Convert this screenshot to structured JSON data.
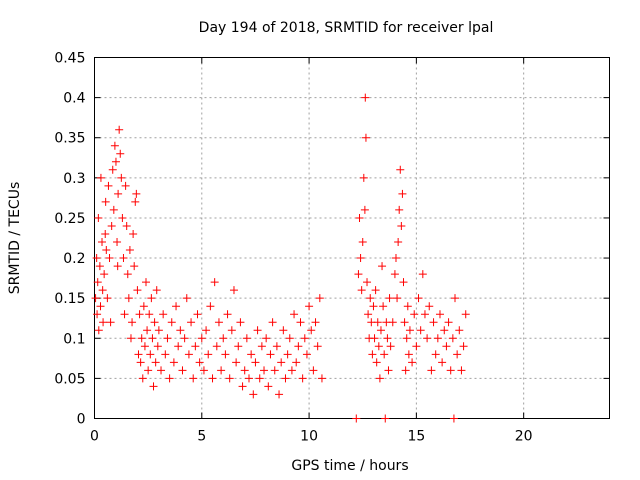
{
  "chart_data": {
    "type": "scatter",
    "title": "Day 194 of 2018, SRMTID for receiver lpal",
    "xlabel": "GPS time / hours",
    "ylabel": "SRMTID / TECUs",
    "xlim": [
      0,
      24
    ],
    "ylim": [
      0,
      0.45
    ],
    "x_ticks": [
      0,
      5,
      10,
      15,
      20
    ],
    "x_tick_labels": [
      "0",
      "5",
      "10",
      "15",
      "20"
    ],
    "y_ticks": [
      0,
      0.05,
      0.1,
      0.15,
      0.2,
      0.25,
      0.3,
      0.35,
      0.4,
      0.45
    ],
    "y_tick_labels": [
      "0",
      "0.05",
      "0.1",
      "0.15",
      "0.2",
      "0.25",
      "0.3",
      "0.35",
      "0.4",
      "0.45"
    ],
    "grid": true,
    "marker": "plus",
    "color": "#ff0000",
    "series": [
      {
        "name": "SRMTID",
        "points": [
          [
            0.05,
            0.15
          ],
          [
            0.1,
            0.2
          ],
          [
            0.12,
            0.13
          ],
          [
            0.15,
            0.17
          ],
          [
            0.18,
            0.25
          ],
          [
            0.2,
            0.11
          ],
          [
            0.25,
            0.19
          ],
          [
            0.28,
            0.14
          ],
          [
            0.3,
            0.3
          ],
          [
            0.35,
            0.22
          ],
          [
            0.38,
            0.16
          ],
          [
            0.4,
            0.12
          ],
          [
            0.45,
            0.18
          ],
          [
            0.5,
            0.23
          ],
          [
            0.52,
            0.27
          ],
          [
            0.55,
            0.21
          ],
          [
            0.6,
            0.15
          ],
          [
            0.65,
            0.29
          ],
          [
            0.7,
            0.2
          ],
          [
            0.75,
            0.12
          ],
          [
            0.8,
            0.24
          ],
          [
            0.85,
            0.31
          ],
          [
            0.9,
            0.26
          ],
          [
            0.95,
            0.34
          ],
          [
            1.0,
            0.32
          ],
          [
            1.05,
            0.22
          ],
          [
            1.08,
            0.19
          ],
          [
            1.1,
            0.28
          ],
          [
            1.15,
            0.36
          ],
          [
            1.2,
            0.33
          ],
          [
            1.25,
            0.3
          ],
          [
            1.3,
            0.25
          ],
          [
            1.35,
            0.2
          ],
          [
            1.4,
            0.13
          ],
          [
            1.45,
            0.29
          ],
          [
            1.5,
            0.24
          ],
          [
            1.55,
            0.18
          ],
          [
            1.6,
            0.15
          ],
          [
            1.65,
            0.21
          ],
          [
            1.7,
            0.1
          ],
          [
            1.75,
            0.12
          ],
          [
            1.8,
            0.23
          ],
          [
            1.85,
            0.19
          ],
          [
            1.9,
            0.27
          ],
          [
            1.95,
            0.28
          ],
          [
            2.0,
            0.16
          ],
          [
            2.05,
            0.08
          ],
          [
            2.1,
            0.13
          ],
          [
            2.15,
            0.07
          ],
          [
            2.2,
            0.1
          ],
          [
            2.25,
            0.05
          ],
          [
            2.3,
            0.14
          ],
          [
            2.35,
            0.09
          ],
          [
            2.4,
            0.17
          ],
          [
            2.45,
            0.11
          ],
          [
            2.5,
            0.06
          ],
          [
            2.55,
            0.13
          ],
          [
            2.6,
            0.08
          ],
          [
            2.65,
            0.15
          ],
          [
            2.7,
            0.1
          ],
          [
            2.75,
            0.04
          ],
          [
            2.8,
            0.12
          ],
          [
            2.85,
            0.07
          ],
          [
            2.9,
            0.16
          ],
          [
            2.95,
            0.09
          ],
          [
            3.0,
            0.11
          ],
          [
            3.1,
            0.06
          ],
          [
            3.2,
            0.13
          ],
          [
            3.3,
            0.08
          ],
          [
            3.4,
            0.1
          ],
          [
            3.5,
            0.05
          ],
          [
            3.6,
            0.12
          ],
          [
            3.7,
            0.07
          ],
          [
            3.8,
            0.14
          ],
          [
            3.9,
            0.09
          ],
          [
            4.0,
            0.11
          ],
          [
            4.1,
            0.06
          ],
          [
            4.2,
            0.1
          ],
          [
            4.3,
            0.15
          ],
          [
            4.4,
            0.08
          ],
          [
            4.5,
            0.12
          ],
          [
            4.6,
            0.05
          ],
          [
            4.7,
            0.09
          ],
          [
            4.8,
            0.13
          ],
          [
            4.9,
            0.07
          ],
          [
            5.0,
            0.1
          ],
          [
            5.1,
            0.06
          ],
          [
            5.2,
            0.11
          ],
          [
            5.3,
            0.08
          ],
          [
            5.4,
            0.14
          ],
          [
            5.5,
            0.05
          ],
          [
            5.6,
            0.17
          ],
          [
            5.7,
            0.09
          ],
          [
            5.8,
            0.12
          ],
          [
            5.9,
            0.06
          ],
          [
            6.0,
            0.1
          ],
          [
            6.1,
            0.08
          ],
          [
            6.2,
            0.13
          ],
          [
            6.3,
            0.05
          ],
          [
            6.4,
            0.11
          ],
          [
            6.5,
            0.16
          ],
          [
            6.6,
            0.07
          ],
          [
            6.7,
            0.09
          ],
          [
            6.8,
            0.12
          ],
          [
            6.9,
            0.04
          ],
          [
            7.0,
            0.06
          ],
          [
            7.1,
            0.1
          ],
          [
            7.2,
            0.05
          ],
          [
            7.3,
            0.08
          ],
          [
            7.4,
            0.03
          ],
          [
            7.5,
            0.07
          ],
          [
            7.6,
            0.11
          ],
          [
            7.7,
            0.05
          ],
          [
            7.8,
            0.09
          ],
          [
            7.9,
            0.06
          ],
          [
            8.0,
            0.1
          ],
          [
            8.1,
            0.04
          ],
          [
            8.2,
            0.08
          ],
          [
            8.3,
            0.12
          ],
          [
            8.4,
            0.06
          ],
          [
            8.5,
            0.09
          ],
          [
            8.6,
            0.03
          ],
          [
            8.7,
            0.07
          ],
          [
            8.8,
            0.11
          ],
          [
            8.9,
            0.05
          ],
          [
            9.0,
            0.08
          ],
          [
            9.1,
            0.1
          ],
          [
            9.2,
            0.06
          ],
          [
            9.3,
            0.13
          ],
          [
            9.4,
            0.07
          ],
          [
            9.5,
            0.09
          ],
          [
            9.6,
            0.12
          ],
          [
            9.7,
            0.05
          ],
          [
            9.8,
            0.1
          ],
          [
            9.9,
            0.08
          ],
          [
            10.0,
            0.14
          ],
          [
            10.1,
            0.11
          ],
          [
            10.2,
            0.06
          ],
          [
            10.3,
            0.12
          ],
          [
            10.4,
            0.09
          ],
          [
            10.5,
            0.15
          ],
          [
            10.6,
            0.05
          ],
          [
            12.2,
            0.0
          ],
          [
            12.3,
            0.18
          ],
          [
            12.35,
            0.25
          ],
          [
            12.4,
            0.2
          ],
          [
            12.45,
            0.16
          ],
          [
            12.5,
            0.22
          ],
          [
            12.55,
            0.3
          ],
          [
            12.6,
            0.26
          ],
          [
            12.62,
            0.4
          ],
          [
            12.65,
            0.35
          ],
          [
            12.7,
            0.17
          ],
          [
            12.75,
            0.13
          ],
          [
            12.8,
            0.1
          ],
          [
            12.85,
            0.15
          ],
          [
            12.9,
            0.12
          ],
          [
            12.95,
            0.08
          ],
          [
            13.0,
            0.14
          ],
          [
            13.05,
            0.1
          ],
          [
            13.1,
            0.16
          ],
          [
            13.15,
            0.07
          ],
          [
            13.2,
            0.12
          ],
          [
            13.25,
            0.09
          ],
          [
            13.3,
            0.05
          ],
          [
            13.35,
            0.11
          ],
          [
            13.4,
            0.19
          ],
          [
            13.45,
            0.14
          ],
          [
            13.5,
            0.08
          ],
          [
            13.55,
            0.0
          ],
          [
            13.6,
            0.12
          ],
          [
            13.65,
            0.1
          ],
          [
            13.7,
            0.06
          ],
          [
            13.75,
            0.15
          ],
          [
            13.8,
            0.09
          ],
          [
            13.9,
            0.12
          ],
          [
            14.0,
            0.18
          ],
          [
            14.05,
            0.2
          ],
          [
            14.1,
            0.15
          ],
          [
            14.15,
            0.22
          ],
          [
            14.2,
            0.26
          ],
          [
            14.25,
            0.31
          ],
          [
            14.3,
            0.24
          ],
          [
            14.35,
            0.28
          ],
          [
            14.4,
            0.17
          ],
          [
            14.45,
            0.12
          ],
          [
            14.5,
            0.06
          ],
          [
            14.55,
            0.1
          ],
          [
            14.6,
            0.14
          ],
          [
            14.65,
            0.08
          ],
          [
            14.7,
            0.11
          ],
          [
            14.8,
            0.07
          ],
          [
            14.9,
            0.13
          ],
          [
            15.0,
            0.09
          ],
          [
            15.1,
            0.15
          ],
          [
            15.2,
            0.11
          ],
          [
            15.3,
            0.18
          ],
          [
            15.4,
            0.13
          ],
          [
            15.5,
            0.1
          ],
          [
            15.6,
            0.14
          ],
          [
            15.7,
            0.06
          ],
          [
            15.8,
            0.12
          ],
          [
            15.9,
            0.08
          ],
          [
            16.0,
            0.1
          ],
          [
            16.1,
            0.13
          ],
          [
            16.2,
            0.07
          ],
          [
            16.3,
            0.11
          ],
          [
            16.4,
            0.09
          ],
          [
            16.5,
            0.12
          ],
          [
            16.6,
            0.06
          ],
          [
            16.7,
            0.1
          ],
          [
            16.75,
            0.0
          ],
          [
            16.8,
            0.15
          ],
          [
            16.9,
            0.08
          ],
          [
            17.0,
            0.11
          ],
          [
            17.1,
            0.06
          ],
          [
            17.2,
            0.09
          ],
          [
            17.3,
            0.13
          ]
        ]
      }
    ]
  }
}
